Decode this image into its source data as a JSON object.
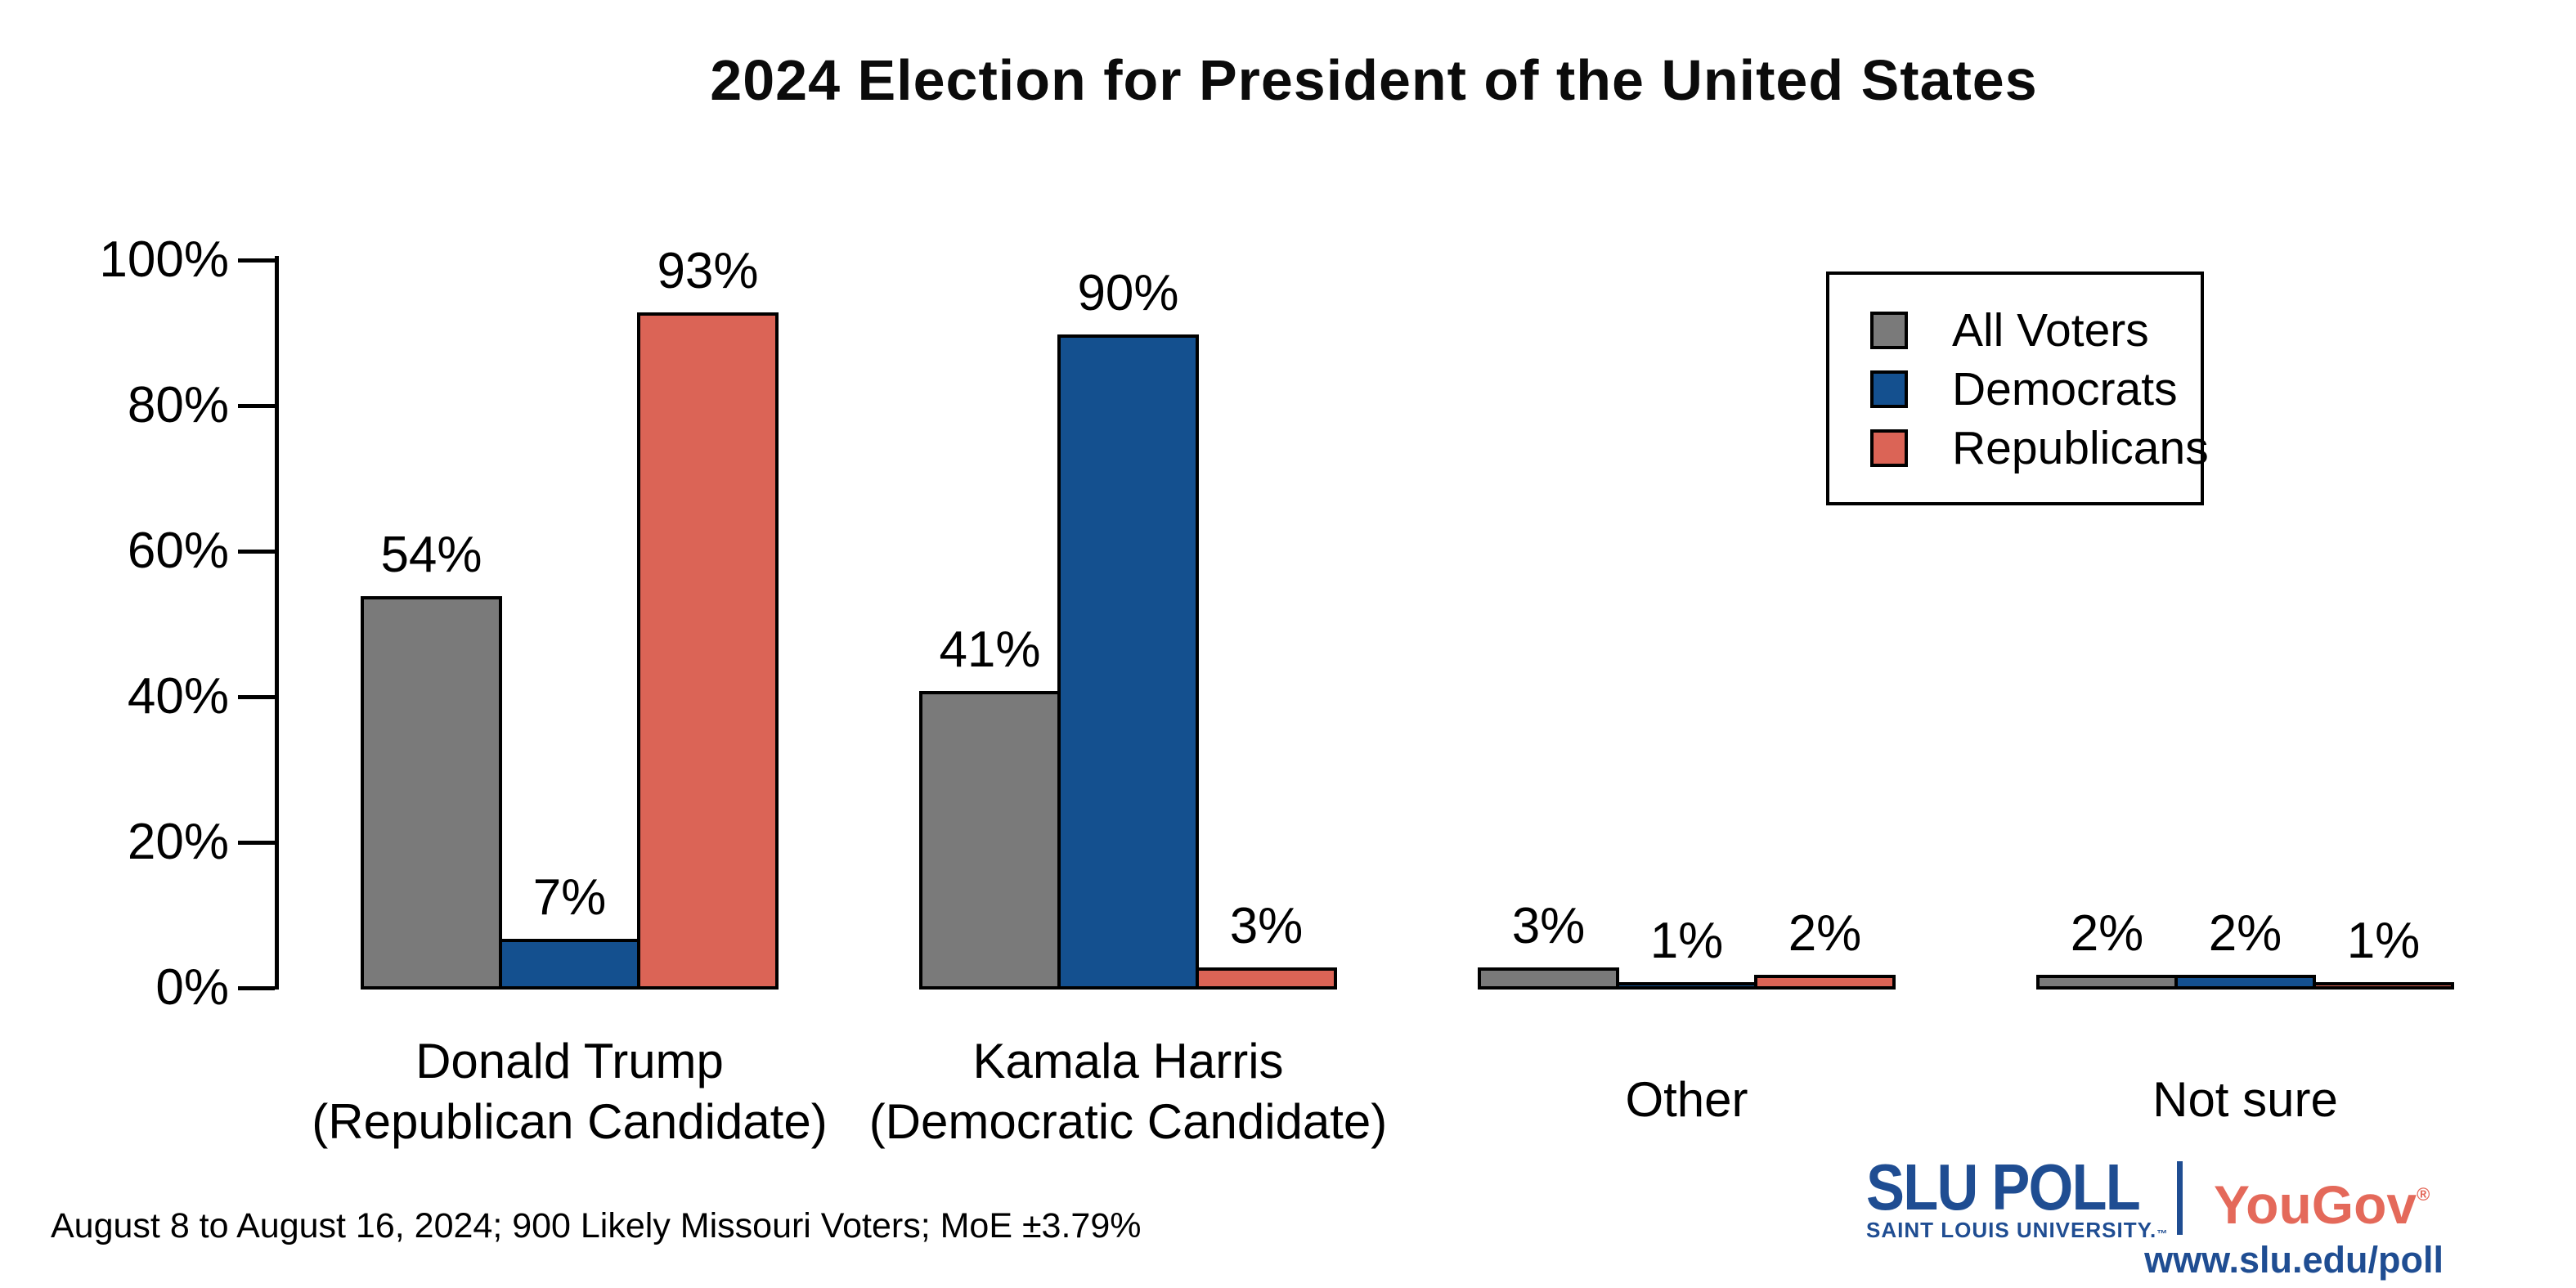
{
  "title": "2024 Election for President of the United States",
  "legend": {
    "items": [
      {
        "label": "All Voters",
        "color": "#7A7A7A"
      },
      {
        "label": "Democrats",
        "color": "#14508F"
      },
      {
        "label": "Republicans",
        "color": "#DB6456"
      }
    ]
  },
  "chart_data": {
    "type": "bar",
    "title": "2024 Election for President of the United States",
    "categories": [
      "Donald Trump (Republican Candidate)",
      "Kamala Harris (Democratic Candidate)",
      "Other",
      "Not sure"
    ],
    "category_labels": [
      [
        "Donald Trump",
        "(Republican Candidate)"
      ],
      [
        "Kamala Harris",
        "(Democratic Candidate)"
      ],
      [
        "Other"
      ],
      [
        "Not sure"
      ]
    ],
    "series": [
      {
        "name": "All Voters",
        "color": "#7A7A7A",
        "values": [
          54,
          41,
          3,
          2
        ]
      },
      {
        "name": "Democrats",
        "color": "#14508F",
        "values": [
          7,
          90,
          1,
          2
        ]
      },
      {
        "name": "Republicans",
        "color": "#DB6456",
        "values": [
          93,
          3,
          2,
          1
        ]
      }
    ],
    "y_ticks": [
      "0%",
      "20%",
      "40%",
      "60%",
      "80%",
      "100%"
    ],
    "ylim": [
      0,
      100
    ],
    "value_suffix": "%",
    "grid": false,
    "legend_position": "top-right"
  },
  "footer": {
    "note": "August 8 to August 16, 2024; 900 Likely Missouri Voters; MoE ±3.79%"
  },
  "branding": {
    "slu_poll": "SLU POLL",
    "slu_sub": "SAINT LOUIS UNIVERSITY.",
    "slu_tm": "™",
    "yougov": "YouGov",
    "yougov_reg": "®",
    "url": "www.slu.edu/poll",
    "slu_blue": "#1F4D92",
    "yougov_red": "#E4695A"
  }
}
